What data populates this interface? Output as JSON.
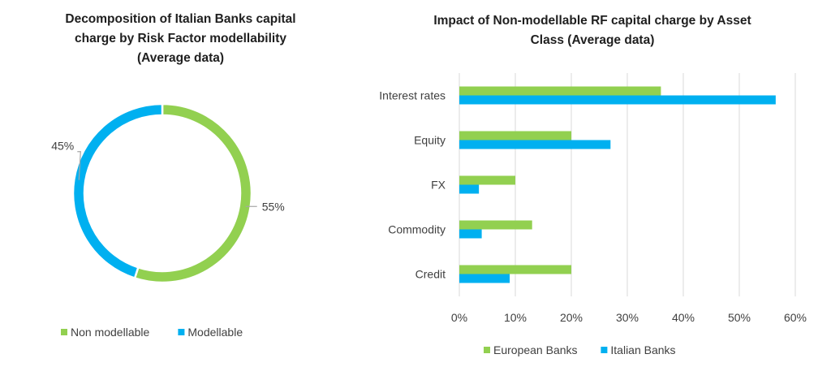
{
  "chart_data": [
    {
      "type": "pie",
      "style": "doughnut",
      "title": "Decomposition of  Italian Banks capital\ncharge by Risk Factor modellability\n(Average data)",
      "slices": [
        {
          "name": "Non modellable",
          "value": 55,
          "label": "55%",
          "color": "#92d050"
        },
        {
          "name": "Modellable",
          "value": 45,
          "label": "45%",
          "color": "#00b0f0"
        }
      ],
      "legend": "bottom"
    },
    {
      "type": "bar",
      "orientation": "horizontal",
      "title": "Impact of Non-modellable RF capital charge by Asset\nClass (Average data)",
      "categories": [
        "Interest rates",
        "Equity",
        "FX",
        "Commodity",
        "Credit"
      ],
      "series": [
        {
          "name": "European Banks",
          "values": [
            36,
            20,
            10,
            13,
            20
          ],
          "color": "#92d050"
        },
        {
          "name": "Italian Banks",
          "values": [
            56.5,
            27,
            3.5,
            4,
            9
          ],
          "color": "#00b0f0"
        }
      ],
      "xlim": [
        0,
        60
      ],
      "xticks": [
        "0%",
        "10%",
        "20%",
        "30%",
        "40%",
        "50%",
        "60%"
      ],
      "grid": true,
      "legend": "bottom"
    }
  ]
}
